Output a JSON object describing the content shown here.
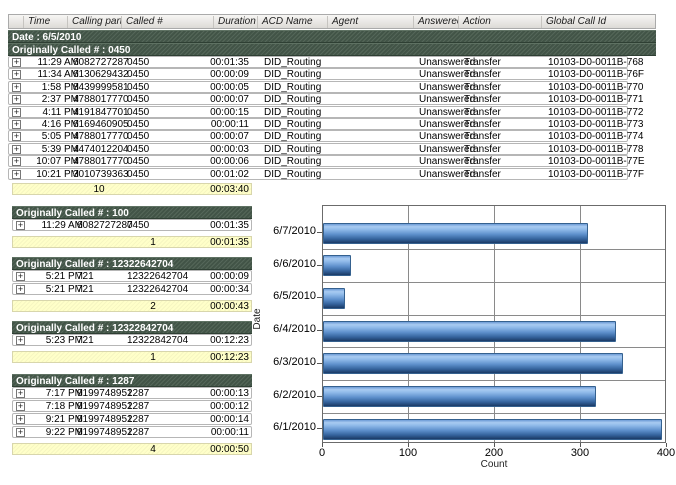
{
  "colors": {
    "group_bar": "#46594b",
    "summary_bg": "#ffffc9",
    "bar_blue_light": "#a9cbf1",
    "bar_blue_dark": "#1b3a66",
    "gridline": "#8a8a8a"
  },
  "table": {
    "columns": [
      "Time",
      "Calling party #",
      "Called #",
      "Duration",
      "ACD Name",
      "Agent",
      "Answered",
      "Action",
      "Global Call Id"
    ],
    "date_label": "Date : 6/5/2010",
    "top_group": {
      "label": "Originally Called # : 0450",
      "rows": [
        {
          "time": "11:29 AM",
          "calling": "6082727287",
          "called": "0450",
          "duration": "00:01:35",
          "acd": "DID_Routing",
          "agent": "",
          "answered": "Unanswered",
          "action": "Transfer",
          "gcid": "10103-D0-0011B-768"
        },
        {
          "time": "11:34 AM",
          "calling": "6130629432",
          "called": "0450",
          "duration": "00:00:09",
          "acd": "DID_Routing",
          "agent": "",
          "answered": "Unanswered",
          "action": "Transfer",
          "gcid": "10103-D0-0011B-76F"
        },
        {
          "time": "1:58 PM",
          "calling": "8439999581",
          "called": "0450",
          "duration": "00:00:05",
          "acd": "DID_Routing",
          "agent": "",
          "answered": "Unanswered",
          "action": "Transfer",
          "gcid": "10103-D0-0011B-770"
        },
        {
          "time": "2:37 PM",
          "calling": "4788017770",
          "called": "0450",
          "duration": "00:00:07",
          "acd": "DID_Routing",
          "agent": "",
          "answered": "Unanswered",
          "action": "Transfer",
          "gcid": "10103-D0-0011B-771"
        },
        {
          "time": "4:11 PM",
          "calling": "4191847701",
          "called": "0450",
          "duration": "00:00:15",
          "acd": "DID_Routing",
          "agent": "",
          "answered": "Unanswered",
          "action": "Transfer",
          "gcid": "10103-D0-0011B-772"
        },
        {
          "time": "4:16 PM",
          "calling": "6169460905",
          "called": "0450",
          "duration": "00:00:11",
          "acd": "DID_Routing",
          "agent": "",
          "answered": "Unanswered",
          "action": "Transfer",
          "gcid": "10103-D0-0011B-773"
        },
        {
          "time": "5:05 PM",
          "calling": "4788017770",
          "called": "0450",
          "duration": "00:00:07",
          "acd": "DID_Routing",
          "agent": "",
          "answered": "Unanswered",
          "action": "Transfer",
          "gcid": "10103-D0-0011B-774"
        },
        {
          "time": "5:39 PM",
          "calling": "4474012204",
          "called": "0450",
          "duration": "00:00:03",
          "acd": "DID_Routing",
          "agent": "",
          "answered": "Unanswered",
          "action": "Transfer",
          "gcid": "10103-D0-0011B-778"
        },
        {
          "time": "10:07 PM",
          "calling": "4788017770",
          "called": "0450",
          "duration": "00:00:06",
          "acd": "DID_Routing",
          "agent": "",
          "answered": "Unanswered",
          "action": "Transfer",
          "gcid": "10103-D0-0011B-77E"
        },
        {
          "time": "10:21 PM",
          "calling": "3010739363",
          "called": "0450",
          "duration": "00:01:02",
          "acd": "DID_Routing",
          "agent": "",
          "answered": "Unanswered",
          "action": "Transfer",
          "gcid": "10103-D0-0011B-77F"
        }
      ],
      "summary": {
        "count": "10",
        "duration": "00:03:40"
      }
    },
    "groups": [
      {
        "label": "Originally Called # : 100",
        "rows": [
          {
            "time": "11:29 AM",
            "calling": "6082727287",
            "called": "0450",
            "duration": "00:01:35"
          }
        ],
        "summary": {
          "count": "1",
          "duration": "00:01:35"
        }
      },
      {
        "label": "Originally Called # : 12322642704",
        "rows": [
          {
            "time": "5:21 PM",
            "calling": "721",
            "called": "12322642704",
            "duration": "00:00:09"
          },
          {
            "time": "5:21 PM",
            "calling": "721",
            "called": "12322642704",
            "duration": "00:00:34"
          }
        ],
        "summary": {
          "count": "2",
          "duration": "00:00:43"
        }
      },
      {
        "label": "Originally Called # : 12322842704",
        "rows": [
          {
            "time": "5:23 PM",
            "calling": "721",
            "called": "12322842704",
            "duration": "00:12:23"
          }
        ],
        "summary": {
          "count": "1",
          "duration": "00:12:23"
        }
      },
      {
        "label": "Originally Called # : 1287",
        "rows": [
          {
            "time": "7:17 PM",
            "calling": "9199748952",
            "called": "1287",
            "duration": "00:00:13"
          },
          {
            "time": "7:18 PM",
            "calling": "9199748952",
            "called": "1287",
            "duration": "00:00:12"
          },
          {
            "time": "9:21 PM",
            "calling": "9199748952",
            "called": "1287",
            "duration": "00:00:14"
          },
          {
            "time": "9:22 PM",
            "calling": "9199748952",
            "called": "1287",
            "duration": "00:00:11"
          }
        ],
        "summary": {
          "count": "4",
          "duration": "00:00:50"
        }
      }
    ]
  },
  "chart_data": {
    "type": "bar",
    "orientation": "horizontal",
    "categories": [
      "6/7/2010",
      "6/6/2010",
      "6/5/2010",
      "6/4/2010",
      "6/3/2010",
      "6/2/2010",
      "6/1/2010"
    ],
    "values": [
      308,
      33,
      26,
      341,
      349,
      318,
      394
    ],
    "title": "",
    "xlabel": "Count",
    "ylabel": "Date",
    "xlim": [
      0,
      400
    ],
    "xticks": [
      0,
      100,
      200,
      300,
      400
    ],
    "grid": true,
    "legend": "none"
  }
}
